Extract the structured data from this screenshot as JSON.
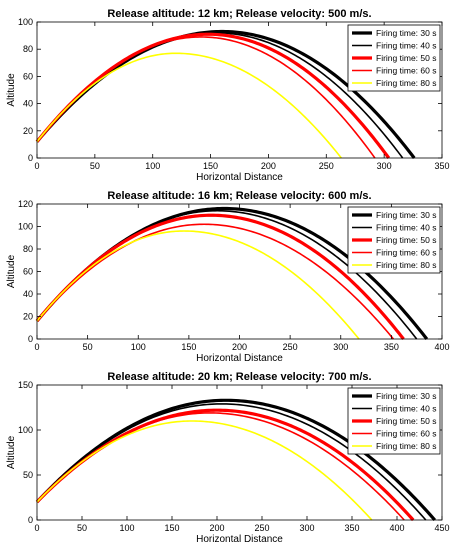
{
  "chart_data": [
    {
      "type": "line",
      "title": "Release altitude: 12 km;   Release velocity: 500 m/s.",
      "xlabel": "Horizontal Distance",
      "ylabel": "Altitude",
      "xlim": [
        0,
        350
      ],
      "ylim": [
        0,
        100
      ],
      "xticks": [
        0,
        50,
        100,
        150,
        200,
        250,
        300,
        350
      ],
      "yticks": [
        0,
        20,
        40,
        60,
        80,
        100
      ],
      "legend_position": "top-right",
      "series": [
        {
          "name": "Firing time: 30 s",
          "color": "#000000",
          "weight": "bold",
          "start": 12,
          "apex_x": 160,
          "apex_y": 93,
          "end_x": 326
        },
        {
          "name": "Firing time: 40 s",
          "color": "#000000",
          "weight": "normal",
          "start": 12,
          "apex_x": 155,
          "apex_y": 92,
          "end_x": 316
        },
        {
          "name": "Firing time: 50 s",
          "color": "#ff0000",
          "weight": "bold",
          "start": 12,
          "apex_x": 148,
          "apex_y": 91,
          "end_x": 304
        },
        {
          "name": "Firing time: 60 s",
          "color": "#ff0000",
          "weight": "normal",
          "start": 12,
          "apex_x": 142,
          "apex_y": 89,
          "end_x": 292
        },
        {
          "name": "Firing time: 80 s",
          "color": "#ffff00",
          "weight": "normal",
          "start": 12,
          "apex_x": 120,
          "apex_y": 77,
          "end_x": 263
        }
      ]
    },
    {
      "type": "line",
      "title": "Release altitude: 16 km;   Release velocity: 600 m/s.",
      "xlabel": "Horizontal Distance",
      "ylabel": "Altitude",
      "xlim": [
        0,
        400
      ],
      "ylim": [
        0,
        120
      ],
      "xticks": [
        0,
        50,
        100,
        150,
        200,
        250,
        300,
        350,
        400
      ],
      "yticks": [
        0,
        20,
        40,
        60,
        80,
        100,
        120
      ],
      "legend_position": "top-right",
      "series": [
        {
          "name": "Firing time: 30 s",
          "color": "#000000",
          "weight": "bold",
          "start": 16,
          "apex_x": 185,
          "apex_y": 116,
          "end_x": 385
        },
        {
          "name": "Firing time: 40 s",
          "color": "#000000",
          "weight": "normal",
          "start": 16,
          "apex_x": 178,
          "apex_y": 114,
          "end_x": 375
        },
        {
          "name": "Firing time: 50 s",
          "color": "#ff0000",
          "weight": "bold",
          "start": 16,
          "apex_x": 172,
          "apex_y": 110,
          "end_x": 362
        },
        {
          "name": "Firing time: 60 s",
          "color": "#ff0000",
          "weight": "normal",
          "start": 16,
          "apex_x": 165,
          "apex_y": 102,
          "end_x": 352
        },
        {
          "name": "Firing time: 80 s",
          "color": "#ffff00",
          "weight": "normal",
          "start": 16,
          "apex_x": 145,
          "apex_y": 96,
          "end_x": 318
        }
      ]
    },
    {
      "type": "line",
      "title": "Release altitude: 20 km;   Release velocity: 700 m/s.",
      "xlabel": "Horizontal Distance",
      "ylabel": "Altitude",
      "xlim": [
        0,
        450
      ],
      "ylim": [
        0,
        150
      ],
      "xticks": [
        0,
        50,
        100,
        150,
        200,
        250,
        300,
        350,
        400,
        450
      ],
      "yticks": [
        0,
        50,
        100,
        150
      ],
      "legend_position": "top-right",
      "series": [
        {
          "name": "Firing time: 30 s",
          "color": "#000000",
          "weight": "bold",
          "start": 20,
          "apex_x": 210,
          "apex_y": 133,
          "end_x": 442
        },
        {
          "name": "Firing time: 40 s",
          "color": "#000000",
          "weight": "normal",
          "start": 20,
          "apex_x": 205,
          "apex_y": 129,
          "end_x": 432
        },
        {
          "name": "Firing time: 50 s",
          "color": "#ff0000",
          "weight": "bold",
          "start": 20,
          "apex_x": 200,
          "apex_y": 122,
          "end_x": 418
        },
        {
          "name": "Firing time: 60 s",
          "color": "#ff0000",
          "weight": "normal",
          "start": 20,
          "apex_x": 192,
          "apex_y": 119,
          "end_x": 408
        },
        {
          "name": "Firing time: 80 s",
          "color": "#ffff00",
          "weight": "normal",
          "start": 20,
          "apex_x": 172,
          "apex_y": 110,
          "end_x": 372
        }
      ]
    }
  ]
}
